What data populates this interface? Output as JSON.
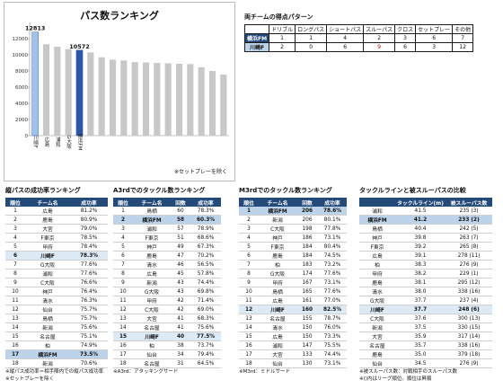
{
  "chart_data": [
    {
      "type": "bar",
      "title": "パス数ランキング",
      "categories": [
        "川崎F",
        "広島",
        "浦和",
        "G大阪",
        "横浜FM",
        "",
        "",
        "",
        "",
        "",
        "",
        "",
        "",
        "",
        "",
        "",
        "",
        ""
      ],
      "values": [
        12813,
        11300,
        11000,
        10700,
        10572,
        10300,
        9700,
        9400,
        9300,
        9100,
        9050,
        9000,
        8950,
        8900,
        8850,
        8450,
        8000,
        7550
      ],
      "highlight": {
        "川崎F": "#9fc2e8",
        "横浜FM": "#2a58a8"
      },
      "default_color": "#c8c8c8",
      "data_labels": {
        "0": "12813",
        "4": "10572"
      },
      "ylim": [
        0,
        14000
      ],
      "yticks": [
        "0",
        "2000",
        "4000",
        "6000",
        "8000",
        "10000",
        "12000"
      ],
      "grid": false,
      "legend": "none",
      "note": "※セットプレーを除く"
    },
    {
      "type": "table",
      "title": "両チームの得点パターン",
      "columns": [
        "",
        "ドリブル",
        "ロングパス",
        "ショートパス",
        "スルーパス",
        "クロス",
        "セットプレー",
        "その他"
      ],
      "rows": [
        {
          "team": "横浜FM",
          "cells": [
            "1",
            "1",
            "4",
            "2",
            "3",
            "6",
            "7"
          ]
        },
        {
          "team": "川崎F",
          "cells": [
            "2",
            "0",
            "6",
            "9",
            "6",
            "3",
            "12"
          ]
        }
      ]
    },
    {
      "type": "table",
      "title": "縦パスの成功率ランキング",
      "columns": [
        "順位",
        "チーム名",
        "成功率"
      ],
      "rows": [
        [
          "1",
          "広島",
          "81.2%"
        ],
        [
          "2",
          "鹿島",
          "80.9%"
        ],
        [
          "3",
          "大宮",
          "79.0%"
        ],
        [
          "4",
          "F東京",
          "78.5%"
        ],
        [
          "5",
          "甲府",
          "78.4%"
        ],
        [
          "6",
          "川崎F",
          "78.3%"
        ],
        [
          "7",
          "G大阪",
          "77.6%"
        ],
        [
          "8",
          "浦和",
          "77.6%"
        ],
        [
          "9",
          "C大阪",
          "76.6%"
        ],
        [
          "10",
          "神戸",
          "76.4%"
        ],
        [
          "11",
          "清水",
          "76.3%"
        ],
        [
          "12",
          "仙台",
          "75.7%"
        ],
        [
          "13",
          "鳥栖",
          "75.7%"
        ],
        [
          "14",
          "新潟",
          "75.6%"
        ],
        [
          "15",
          "名古屋",
          "75.1%"
        ],
        [
          "16",
          "柏",
          "74.9%"
        ],
        [
          "17",
          "横浜FM",
          "73.5%"
        ],
        [
          "18",
          "新潟",
          "70.6%"
        ]
      ],
      "highlight_rows": {
        "6": "light",
        "17": "dark"
      },
      "notes": [
        "※縦パス成功率＝相手陣内での縦パス成功率",
        "※セットプレーを除く"
      ]
    },
    {
      "type": "table",
      "title": "A3rdでのタックル数ランキング",
      "columns": [
        "順位",
        "チーム名",
        "回数",
        "成功率"
      ],
      "rows": [
        [
          "1",
          "鳥栖",
          "60",
          "78.3%"
        ],
        [
          "2",
          "横浜FM",
          "58",
          "60.3%"
        ],
        [
          "3",
          "浦和",
          "57",
          "78.9%"
        ],
        [
          "4",
          "F東京",
          "51",
          "68.6%"
        ],
        [
          "5",
          "神戸",
          "49",
          "67.3%"
        ],
        [
          "6",
          "鹿島",
          "47",
          "70.2%"
        ],
        [
          "7",
          "清水",
          "46",
          "56.5%"
        ],
        [
          "8",
          "広島",
          "45",
          "57.8%"
        ],
        [
          "9",
          "新潟",
          "43",
          "74.4%"
        ],
        [
          "10",
          "G大阪",
          "43",
          "69.8%"
        ],
        [
          "11",
          "甲府",
          "42",
          "71.4%"
        ],
        [
          "12",
          "C大阪",
          "42",
          "69.0%"
        ],
        [
          "13",
          "大宮",
          "41",
          "68.3%"
        ],
        [
          "14",
          "名古屋",
          "41",
          "75.6%"
        ],
        [
          "15",
          "川崎F",
          "40",
          "77.5%"
        ],
        [
          "16",
          "柏",
          "38",
          "73.7%"
        ],
        [
          "17",
          "仙台",
          "34",
          "79.4%"
        ],
        [
          "18",
          "名古屋",
          "31",
          "64.5%"
        ]
      ],
      "highlight_rows": {
        "2": "dark",
        "15": "light"
      },
      "notes": [
        "※A3rd：アタッキングサード"
      ]
    },
    {
      "type": "table",
      "title": "M3rdでのタックル数ランキング",
      "columns": [
        "順位",
        "チーム名",
        "回数",
        "成功率"
      ],
      "rows": [
        [
          "1",
          "横浜FM",
          "206",
          "78.6%"
        ],
        [
          "2",
          "新潟",
          "206",
          "80.1%"
        ],
        [
          "3",
          "C大阪",
          "198",
          "77.8%"
        ],
        [
          "4",
          "神戸",
          "186",
          "73.1%"
        ],
        [
          "5",
          "F東京",
          "184",
          "80.4%"
        ],
        [
          "6",
          "鹿島",
          "184",
          "74.5%"
        ],
        [
          "7",
          "柏",
          "183",
          "73.2%"
        ],
        [
          "8",
          "G大阪",
          "174",
          "77.6%"
        ],
        [
          "9",
          "甲府",
          "167",
          "73.1%"
        ],
        [
          "10",
          "鳥栖",
          "165",
          "77.6%"
        ],
        [
          "11",
          "広島",
          "161",
          "77.0%"
        ],
        [
          "12",
          "川崎F",
          "160",
          "82.5%"
        ],
        [
          "13",
          "名古屋",
          "155",
          "78.7%"
        ],
        [
          "14",
          "清水",
          "150",
          "76.0%"
        ],
        [
          "15",
          "広島",
          "150",
          "73.3%"
        ],
        [
          "16",
          "浦和",
          "147",
          "75.5%"
        ],
        [
          "17",
          "大宮",
          "133",
          "74.4%"
        ],
        [
          "18",
          "仙台",
          "130",
          "73.1%"
        ]
      ],
      "highlight_rows": {
        "1": "dark",
        "12": "light"
      },
      "notes": [
        "※M3rd：ミドルサード"
      ]
    },
    {
      "type": "table",
      "title": "タックルラインと被スルーパスの比較",
      "columns": [
        "",
        "タックルライン(m)",
        "被スルーパス数"
      ],
      "rows": [
        [
          "浦和",
          "41.5",
          "235 (3)"
        ],
        [
          "横浜FM",
          "41.2",
          "233 (2)"
        ],
        [
          "鳥栖",
          "40.4",
          "242 (5)"
        ],
        [
          "神戸",
          "39.8",
          "263 (7)"
        ],
        [
          "F東京",
          "39.2",
          "265 (8)"
        ],
        [
          "広島",
          "39.1",
          "278 (11)"
        ],
        [
          "柏",
          "38.3",
          "276 (9)"
        ],
        [
          "甲府",
          "38.2",
          "229 (1)"
        ],
        [
          "鹿島",
          "38.1",
          "295 (12)"
        ],
        [
          "清水",
          "38.0",
          "338 (16)"
        ],
        [
          "G大阪",
          "37.7",
          "237 (4)"
        ],
        [
          "川崎F",
          "37.7",
          "248 (6)"
        ],
        [
          "C大阪",
          "37.6",
          "300 (13)"
        ],
        [
          "新潟",
          "37.5",
          "330 (15)"
        ],
        [
          "大宮",
          "35.9",
          "317 (14)"
        ],
        [
          "名古屋",
          "35.7",
          "338 (16)"
        ],
        [
          "鹿島",
          "35.0",
          "379 (18)"
        ],
        [
          "仙台",
          "34.5",
          "276 (9)"
        ]
      ],
      "highlight_rows": {
        "2": "dark",
        "12": "light"
      },
      "notes": [
        "※被スルーパス数：対戦相手のスルーパス数",
        "※()内はリーグ順位。順位は昇順"
      ]
    }
  ]
}
